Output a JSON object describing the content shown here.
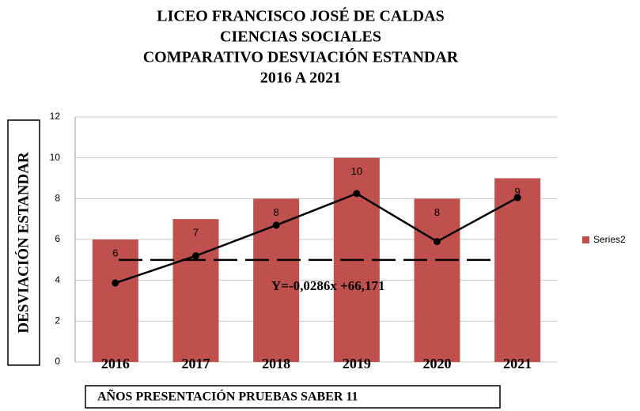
{
  "chart_data": {
    "type": "bar",
    "title": [
      "LICEO FRANCISCO JOSÉ DE CALDAS",
      "CIENCIAS SOCIALES",
      "COMPARATIVO DESVIACIÓN ESTANDAR",
      "2016 A 2021"
    ],
    "y_label": "DESVIACIÓN ESTANDAR",
    "x_label": "AÑOS PRESENTACIÓN  PRUEBAS SABER 11",
    "categories": [
      "2016",
      "2017",
      "2018",
      "2019",
      "2020",
      "2021"
    ],
    "series": [
      {
        "name": "Series2",
        "color": "#c0504d",
        "values": [
          6,
          7,
          8,
          10,
          8,
          9
        ]
      },
      {
        "type": "line",
        "color": "#000000",
        "values": [
          3.87,
          5.2,
          6.7,
          8.25,
          5.9,
          8.05
        ]
      }
    ],
    "reference_line": 5,
    "annotation": "Y=-0,0286x +66,171",
    "ylim": [
      0,
      12
    ],
    "yticks": [
      0,
      2,
      4,
      6,
      8,
      10,
      12
    ],
    "grid": true,
    "legend": "right"
  }
}
